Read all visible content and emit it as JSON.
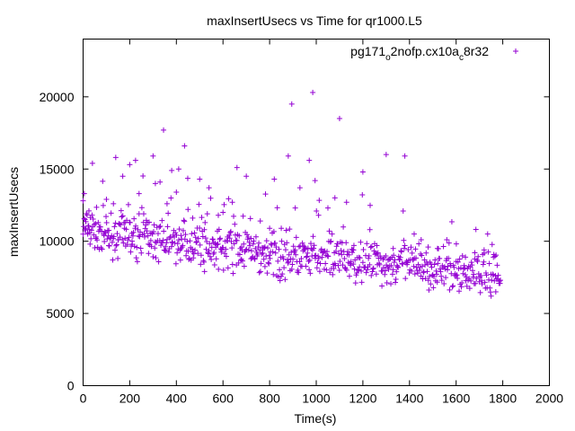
{
  "chart_data": {
    "type": "scatter",
    "title": "maxInsertUsecs vs Time for qr1000.L5",
    "xlabel": "Time(s)",
    "ylabel": "maxInsertUsecs",
    "xlim": [
      0,
      2000
    ],
    "ylim": [
      0,
      24000
    ],
    "x_ticks": [
      0,
      200,
      400,
      600,
      800,
      1000,
      1200,
      1400,
      1600,
      1800,
      2000
    ],
    "y_ticks": [
      0,
      5000,
      10000,
      15000,
      20000
    ],
    "x_tick_labels": [
      "0",
      "200",
      "400",
      "600",
      "800",
      "1000",
      "1200",
      "1400",
      "1600",
      "1800",
      "2000"
    ],
    "y_tick_labels": [
      "0",
      "5000",
      "10000",
      "15000",
      "20000"
    ],
    "grid": false,
    "legend_position": "top-right",
    "marker": "+",
    "color": "#9400d3",
    "legend": {
      "base": "pg171",
      "sub1": "o",
      "mid": "2nofp.cx10a",
      "sub2": "c",
      "tail": "8r32"
    },
    "series": [
      {
        "name": "pg171_o2nofp.cx10a_c8r32",
        "trend": [
          [
            0,
            10900
          ],
          [
            200,
            10300
          ],
          [
            400,
            9900
          ],
          [
            600,
            9500
          ],
          [
            800,
            9100
          ],
          [
            1000,
            8800
          ],
          [
            1200,
            8600
          ],
          [
            1400,
            8300
          ],
          [
            1600,
            7900
          ],
          [
            1780,
            7600
          ]
        ],
        "points": [
          [
            0,
            12800
          ],
          [
            5,
            13300
          ],
          [
            8,
            11500
          ],
          [
            12,
            10900
          ],
          [
            20,
            10500
          ],
          [
            25,
            12100
          ],
          [
            30,
            9800
          ],
          [
            40,
            15400
          ],
          [
            55,
            10200
          ],
          [
            70,
            11000
          ],
          [
            90,
            10400
          ],
          [
            100,
            12900
          ],
          [
            110,
            9700
          ],
          [
            130,
            12600
          ],
          [
            140,
            15800
          ],
          [
            150,
            10100
          ],
          [
            170,
            14500
          ],
          [
            180,
            11300
          ],
          [
            200,
            15300
          ],
          [
            210,
            10000
          ],
          [
            225,
            15600
          ],
          [
            240,
            13300
          ],
          [
            260,
            11900
          ],
          [
            280,
            9800
          ],
          [
            300,
            15900
          ],
          [
            310,
            14000
          ],
          [
            330,
            14100
          ],
          [
            345,
            17700
          ],
          [
            360,
            12600
          ],
          [
            380,
            14900
          ],
          [
            400,
            13400
          ],
          [
            410,
            15000
          ],
          [
            420,
            10400
          ],
          [
            435,
            16600
          ],
          [
            450,
            12200
          ],
          [
            470,
            11600
          ],
          [
            500,
            14300
          ],
          [
            520,
            10800
          ],
          [
            540,
            13700
          ],
          [
            560,
            9900
          ],
          [
            580,
            11800
          ],
          [
            600,
            12000
          ],
          [
            620,
            10300
          ],
          [
            640,
            12700
          ],
          [
            660,
            15100
          ],
          [
            680,
            9600
          ],
          [
            700,
            14500
          ],
          [
            720,
            10200
          ],
          [
            760,
            11400
          ],
          [
            780,
            9600
          ],
          [
            800,
            10900
          ],
          [
            820,
            14300
          ],
          [
            850,
            10900
          ],
          [
            880,
            15900
          ],
          [
            895,
            19500
          ],
          [
            910,
            12300
          ],
          [
            930,
            13700
          ],
          [
            950,
            9600
          ],
          [
            970,
            15600
          ],
          [
            985,
            20300
          ],
          [
            995,
            14200
          ],
          [
            1010,
            11800
          ],
          [
            1050,
            12300
          ],
          [
            1080,
            13000
          ],
          [
            1100,
            18500
          ],
          [
            1130,
            12700
          ],
          [
            1160,
            9400
          ],
          [
            1200,
            14800
          ],
          [
            1230,
            10800
          ],
          [
            1260,
            9700
          ],
          [
            1300,
            16000
          ],
          [
            1330,
            9500
          ],
          [
            1380,
            15900
          ],
          [
            1420,
            10500
          ],
          [
            1450,
            10100
          ],
          [
            1480,
            9600
          ],
          [
            1520,
            9500
          ],
          [
            1560,
            10100
          ],
          [
            1600,
            8600
          ],
          [
            1640,
            8900
          ],
          [
            1680,
            9200
          ],
          [
            1720,
            9400
          ],
          [
            1760,
            8900
          ],
          [
            1750,
            6200
          ],
          [
            1770,
            6500
          ],
          [
            1790,
            7300
          ]
        ]
      }
    ]
  }
}
